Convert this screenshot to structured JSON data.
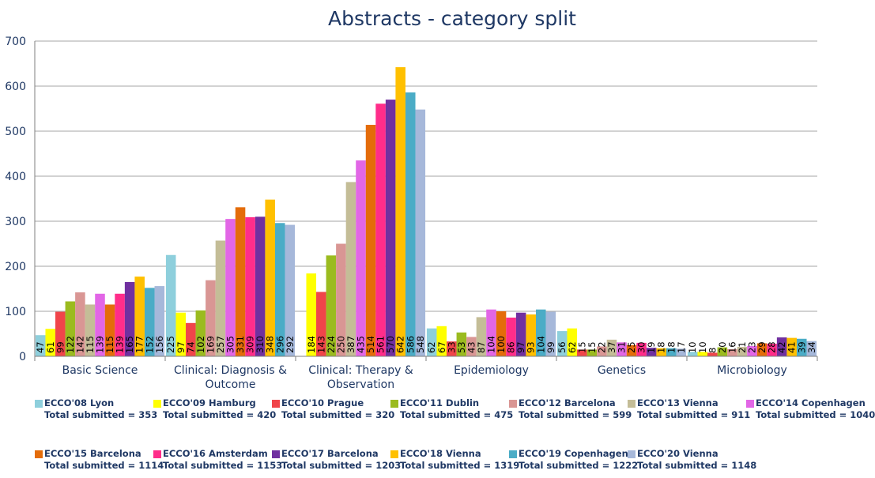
{
  "chart_data": {
    "type": "bar",
    "title": "Abstracts - category split",
    "xlabel": "",
    "ylabel": "",
    "ylim": [
      0,
      700
    ],
    "yticks": [
      "0",
      "100",
      "200",
      "300",
      "400",
      "500",
      "600",
      "700"
    ],
    "grid": true,
    "legend_position": "bottom",
    "categories": [
      [
        "Basic Science"
      ],
      [
        "Clinical: Diagnosis &",
        "Outcome"
      ],
      [
        "Clinical: Therapy &",
        "Observation"
      ],
      [
        "Epidemiology"
      ],
      [
        "Genetics"
      ],
      [
        "Microbiology"
      ]
    ],
    "series": [
      {
        "name": "ECCO'08 Lyon",
        "total": "Total submitted = 353",
        "color": "#8ecfdc",
        "values": [
          47,
          225,
          0,
          62,
          56,
          10
        ],
        "labels": [
          "47",
          "225",
          "",
          "62",
          "56",
          "10"
        ]
      },
      {
        "name": "ECCO'09 Hamburg",
        "total": "Total submitted = 420",
        "color": "#ffff00",
        "values": [
          61,
          97,
          184,
          67,
          62,
          10
        ],
        "labels": [
          "61",
          "97",
          "184",
          "67",
          "62",
          "10"
        ]
      },
      {
        "name": "ECCO'10 Prague",
        "total": "Total submitted = 320",
        "color": "#f0454a",
        "values": [
          99,
          74,
          143,
          33,
          15,
          8
        ],
        "labels": [
          "99",
          "74",
          "143",
          "33",
          "15",
          "8"
        ]
      },
      {
        "name": "ECCO'11 Dublin",
        "total": "Total submitted = 475",
        "color": "#9bbb1f",
        "values": [
          122,
          102,
          224,
          53,
          15,
          20
        ],
        "labels": [
          "122",
          "102",
          "224",
          "53",
          "15",
          "20"
        ]
      },
      {
        "name": "ECCO'12 Barcelona",
        "total": "Total submitted = 599",
        "color": "#d99694",
        "values": [
          142,
          169,
          250,
          43,
          22,
          16
        ],
        "labels": [
          "142",
          "169",
          "250",
          "43",
          "22",
          "16"
        ]
      },
      {
        "name": "ECCO'13 Vienna",
        "total": "Total submitted = 911",
        "color": "#c4bd97",
        "values": [
          115,
          257,
          387,
          87,
          37,
          21
        ],
        "labels": [
          "115",
          "257",
          "387",
          "87",
          "37",
          "21"
        ]
      },
      {
        "name": "ECCO'14 Copenhagen",
        "total": "Total submitted = 1040",
        "color": "#e266e6",
        "values": [
          139,
          305,
          435,
          104,
          31,
          23
        ],
        "labels": [
          "139",
          "305",
          "435",
          "104",
          "31",
          "23"
        ]
      },
      {
        "name": "ECCO'15 Barcelona",
        "total": "Total submitted = 1114",
        "color": "#e46c0a",
        "values": [
          115,
          331,
          514,
          100,
          25,
          29
        ],
        "labels": [
          "115",
          "331",
          "514",
          "100",
          "25",
          "29"
        ]
      },
      {
        "name": "ECCO'16 Amsterdam",
        "total": "Total submitted = 1153",
        "color": "#ff2d8a",
        "values": [
          139,
          309,
          561,
          86,
          30,
          28
        ],
        "labels": [
          "139",
          "309",
          "561",
          "86",
          "30",
          "28"
        ]
      },
      {
        "name": "ECCO'17 Barcelona",
        "total": "Total submitted = 1203",
        "color": "#7030a0",
        "values": [
          165,
          310,
          570,
          97,
          19,
          42
        ],
        "labels": [
          "165",
          "310",
          "570",
          "97",
          "19",
          "42"
        ]
      },
      {
        "name": "ECCO'18 Vienna",
        "total": "Total submitted = 1319",
        "color": "#ffc000",
        "values": [
          177,
          348,
          642,
          93,
          18,
          41
        ],
        "labels": [
          "177",
          "348",
          "642",
          "93",
          "18",
          "41"
        ]
      },
      {
        "name": "ECCO'19 Copenhagen",
        "total": "Total submitted = 1222",
        "color": "#4bacc6",
        "values": [
          152,
          296,
          586,
          104,
          18,
          39
        ],
        "labels": [
          "152",
          "296",
          "586",
          "104",
          "18",
          "39"
        ]
      },
      {
        "name": "ECCO'20 Vienna",
        "total": "Total submitted = 1148",
        "color": "#a6b8da",
        "values": [
          156,
          292,
          548,
          99,
          17,
          34
        ],
        "labels": [
          "156",
          "292",
          "548",
          "99",
          "17",
          "34"
        ]
      }
    ]
  }
}
